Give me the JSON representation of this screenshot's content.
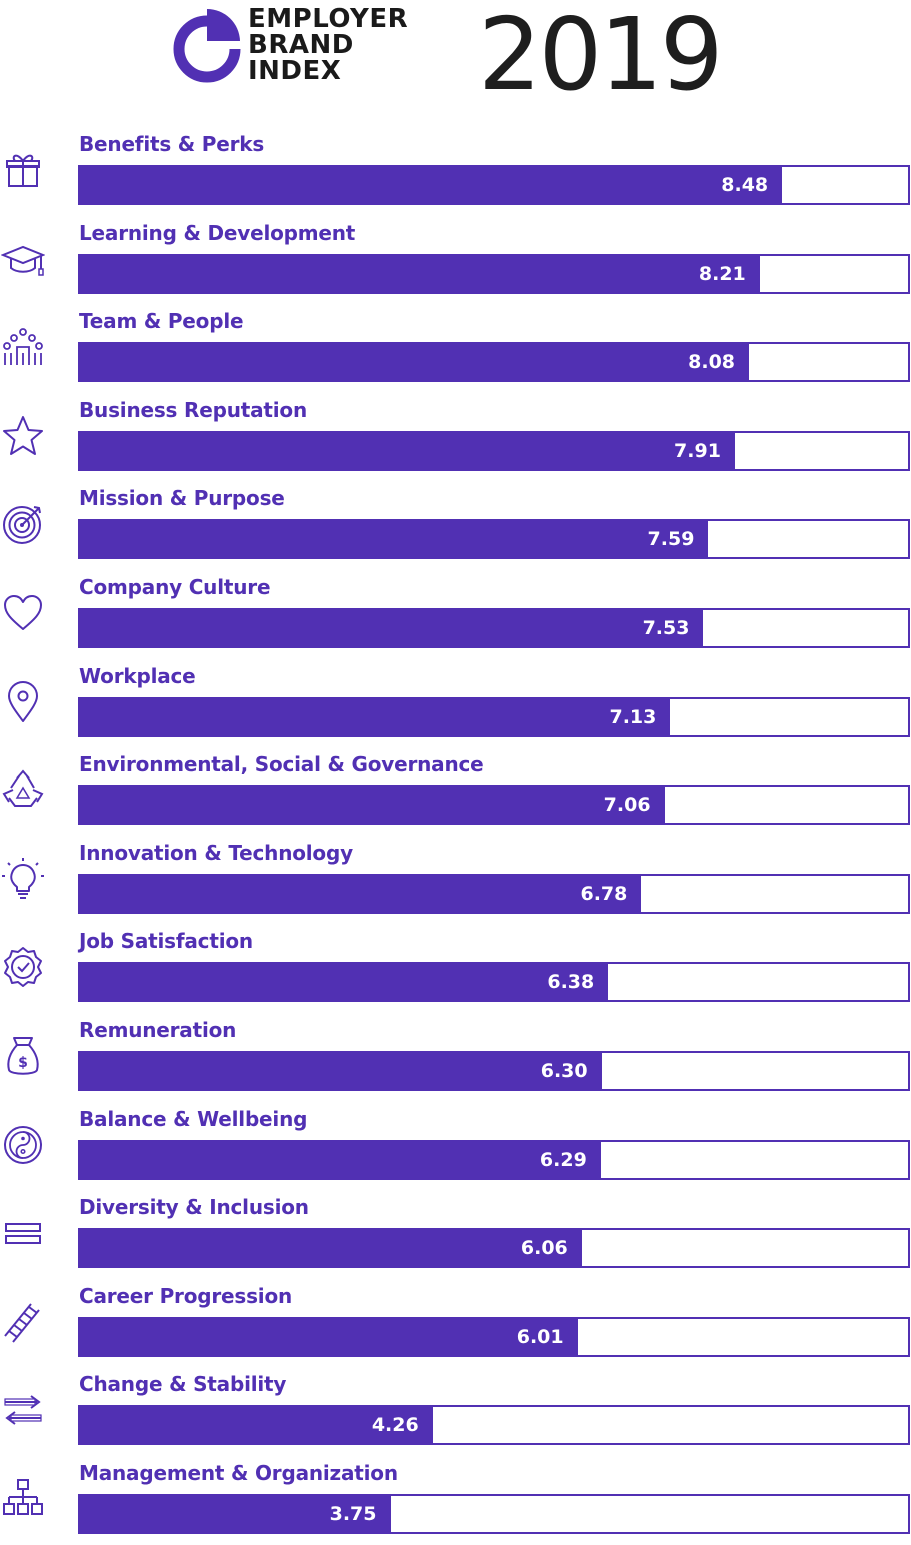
{
  "header": {
    "logo_lines": [
      "EMPLOYER",
      "BRAND",
      "INDEX"
    ],
    "year": "2019"
  },
  "colors": {
    "accent": "#5130b3",
    "text_dark": "#1e1e1e",
    "background": "#ffffff"
  },
  "chart_data": {
    "type": "bar",
    "orientation": "horizontal",
    "xlim": [
      0,
      10
    ],
    "categories": [
      "Benefits & Perks",
      "Learning & Development",
      "Team & People",
      "Business Reputation",
      "Mission & Purpose",
      "Company Culture",
      "Workplace",
      "Environmental, Social & Governance",
      "Innovation & Technology",
      "Job Satisfaction",
      "Remuneration",
      "Balance & Wellbeing",
      "Diversity & Inclusion",
      "Career Progression",
      "Change & Stability",
      "Management & Organization"
    ],
    "values": [
      8.48,
      8.21,
      8.08,
      7.91,
      7.59,
      7.53,
      7.13,
      7.06,
      6.78,
      6.38,
      6.3,
      6.29,
      6.06,
      6.01,
      4.26,
      3.75
    ],
    "value_labels": [
      "8.48",
      "8.21",
      "8.08",
      "7.91",
      "7.59",
      "7.53",
      "7.13",
      "7.06",
      "6.78",
      "6.38",
      "6.30",
      "6.29",
      "6.06",
      "6.01",
      "4.26",
      "3.75"
    ],
    "icons": [
      "gift-icon",
      "graduation-cap-icon",
      "team-icon",
      "star-icon",
      "target-icon",
      "heart-icon",
      "location-pin-icon",
      "recycle-icon",
      "lightbulb-icon",
      "badge-check-icon",
      "money-bag-icon",
      "yin-yang-icon",
      "equals-icon",
      "ladder-icon",
      "swap-arrows-icon",
      "org-chart-icon"
    ]
  }
}
